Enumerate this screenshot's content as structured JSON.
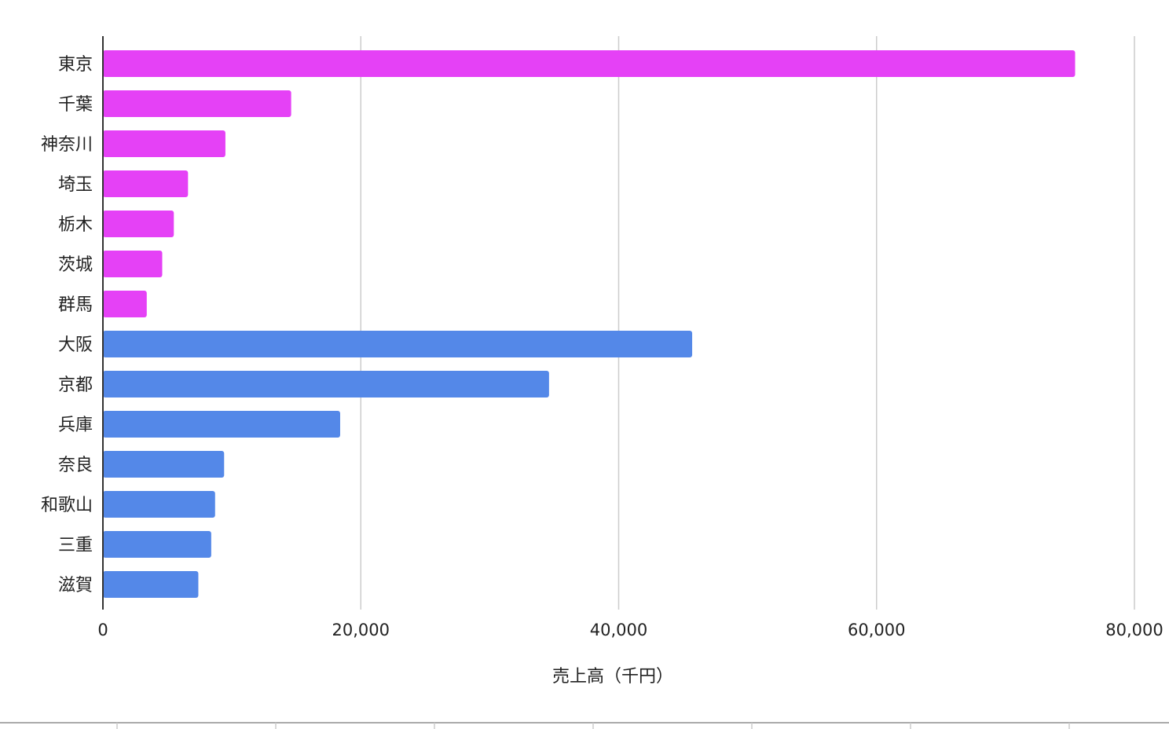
{
  "chart_data": {
    "type": "bar",
    "orientation": "horizontal",
    "categories": [
      "東京",
      "千葉",
      "神奈川",
      "埼玉",
      "栃木",
      "茨城",
      "群馬",
      "大阪",
      "京都",
      "兵庫",
      "奈良",
      "和歌山",
      "三重",
      "滋賀"
    ],
    "values": [
      75400,
      14600,
      9500,
      6600,
      5500,
      4600,
      3400,
      45700,
      34600,
      18400,
      9400,
      8700,
      8400,
      7400
    ],
    "bar_groups": [
      0,
      0,
      0,
      0,
      0,
      0,
      0,
      1,
      1,
      1,
      1,
      1,
      1,
      1
    ],
    "group_colors": [
      "#e541f6",
      "#5488e8"
    ],
    "xlabel": "売上高（千円）",
    "xlim": [
      0,
      80000
    ],
    "x_ticks": [
      0,
      20000,
      40000,
      60000,
      80000
    ],
    "x_tick_labels": [
      "0",
      "20,000",
      "40,000",
      "60,000",
      "80,000"
    ],
    "grid": "vertical",
    "legend": "none"
  }
}
